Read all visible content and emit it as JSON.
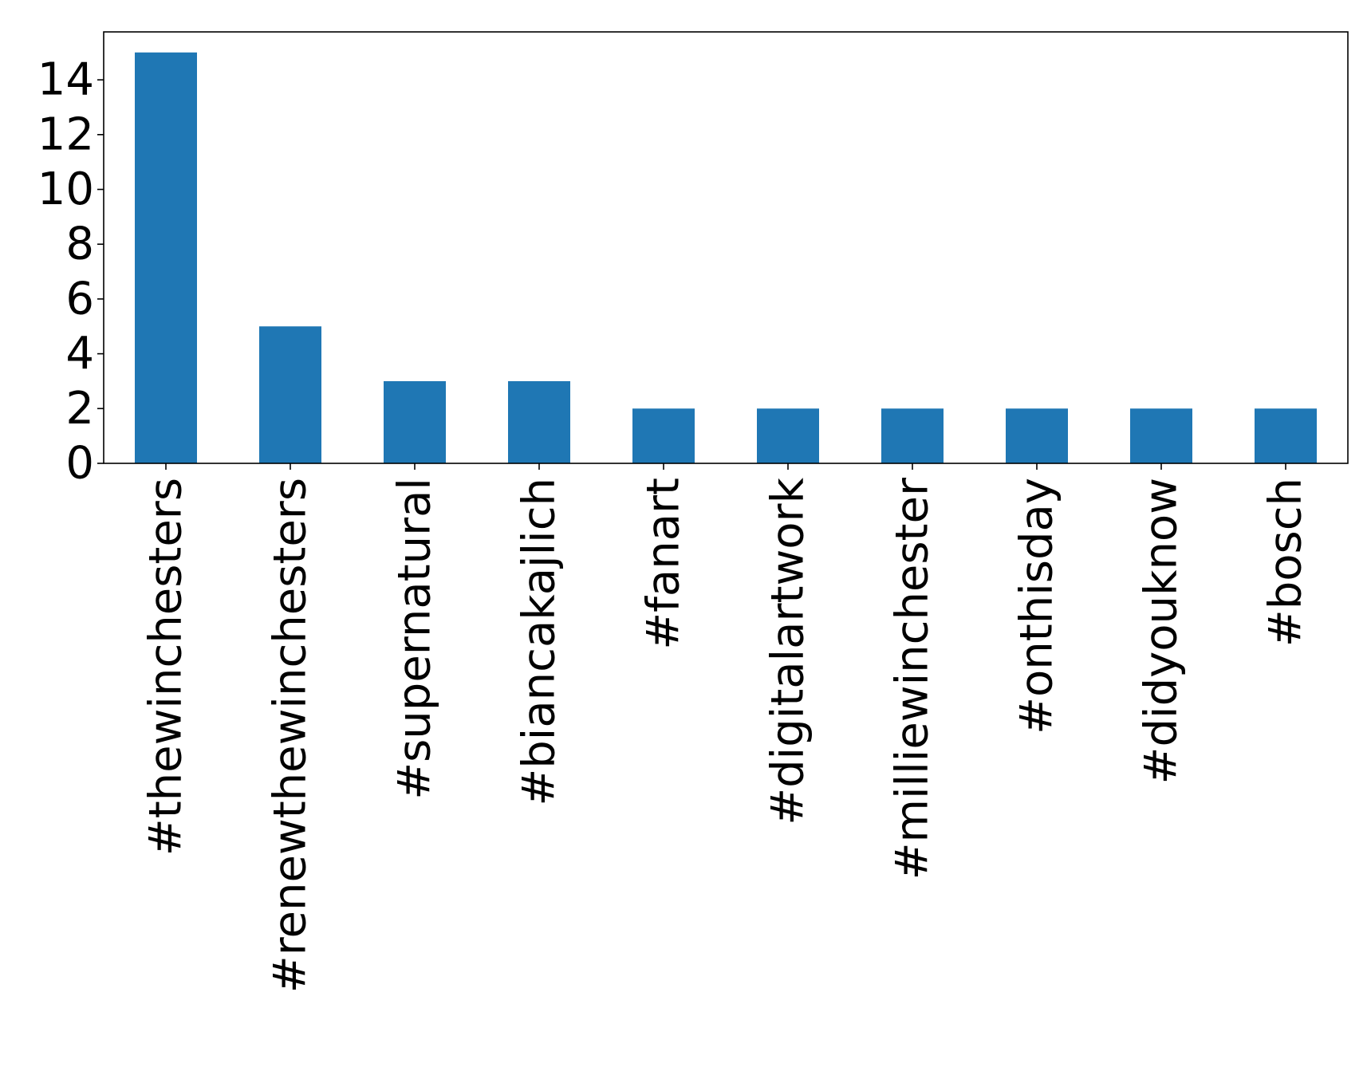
{
  "chart_data": {
    "type": "bar",
    "title": "",
    "xlabel": "",
    "ylabel": "",
    "categories": [
      "#thewinchesters",
      "#renewthewinchesters",
      "#supernatural",
      "#biancakajlich",
      "#fanart",
      "#digitalartwork",
      "#milliewinchester",
      "#onthisday",
      "#didyouknow",
      "#bosch"
    ],
    "values": [
      15,
      5,
      3,
      3,
      2,
      2,
      2,
      2,
      2,
      2
    ],
    "ylim": [
      0,
      15.75
    ],
    "yticks": [
      0,
      2,
      4,
      6,
      8,
      10,
      12,
      14
    ],
    "bar_color": "#1f77b4",
    "grid": false,
    "legend": "none"
  }
}
